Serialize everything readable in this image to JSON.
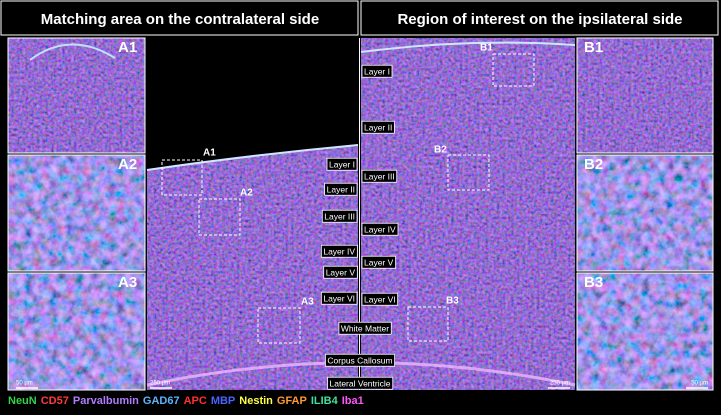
{
  "headers": {
    "left": "Matching area on the contralateral side",
    "right": "Region of interest on the ipsilateral side"
  },
  "panel_labels": {
    "left": [
      "A1",
      "A2",
      "A3"
    ],
    "right": [
      "B1",
      "B2",
      "B3"
    ]
  },
  "inset_labels": {
    "left": [
      "A1",
      "A2",
      "A3"
    ],
    "right": [
      "B1",
      "B2",
      "B3"
    ]
  },
  "layers_contralateral": [
    "Layer I",
    "Layer II",
    "Layer III",
    "Layer IV",
    "Layer V",
    "Layer VI"
  ],
  "layers_ipsilateral": [
    "Layer I",
    "Layer II",
    "Layer III",
    "Layer IV",
    "Layer V",
    "Layer VI",
    "White Matter",
    "Corpus Callosum",
    "Lateral Ventricle"
  ],
  "scale_bars": [
    "50 µm",
    "250 µm",
    "250 µm",
    "50 µm"
  ],
  "legend": [
    {
      "name": "NeuN",
      "color": "#33d24a"
    },
    {
      "name": "CD57",
      "color": "#ff3b3b"
    },
    {
      "name": "Parvalbumin",
      "color": "#b07cff"
    },
    {
      "name": "GAD67",
      "color": "#5ab4ff"
    },
    {
      "name": "APC",
      "color": "#ff3030"
    },
    {
      "name": "MBP",
      "color": "#4a63ff"
    },
    {
      "name": "Nestin",
      "color": "#ffff4a"
    },
    {
      "name": "GFAP",
      "color": "#ff9a33"
    },
    {
      "name": "ILIB4",
      "color": "#3fe0a0"
    },
    {
      "name": "Iba1",
      "color": "#ff55ff"
    }
  ]
}
